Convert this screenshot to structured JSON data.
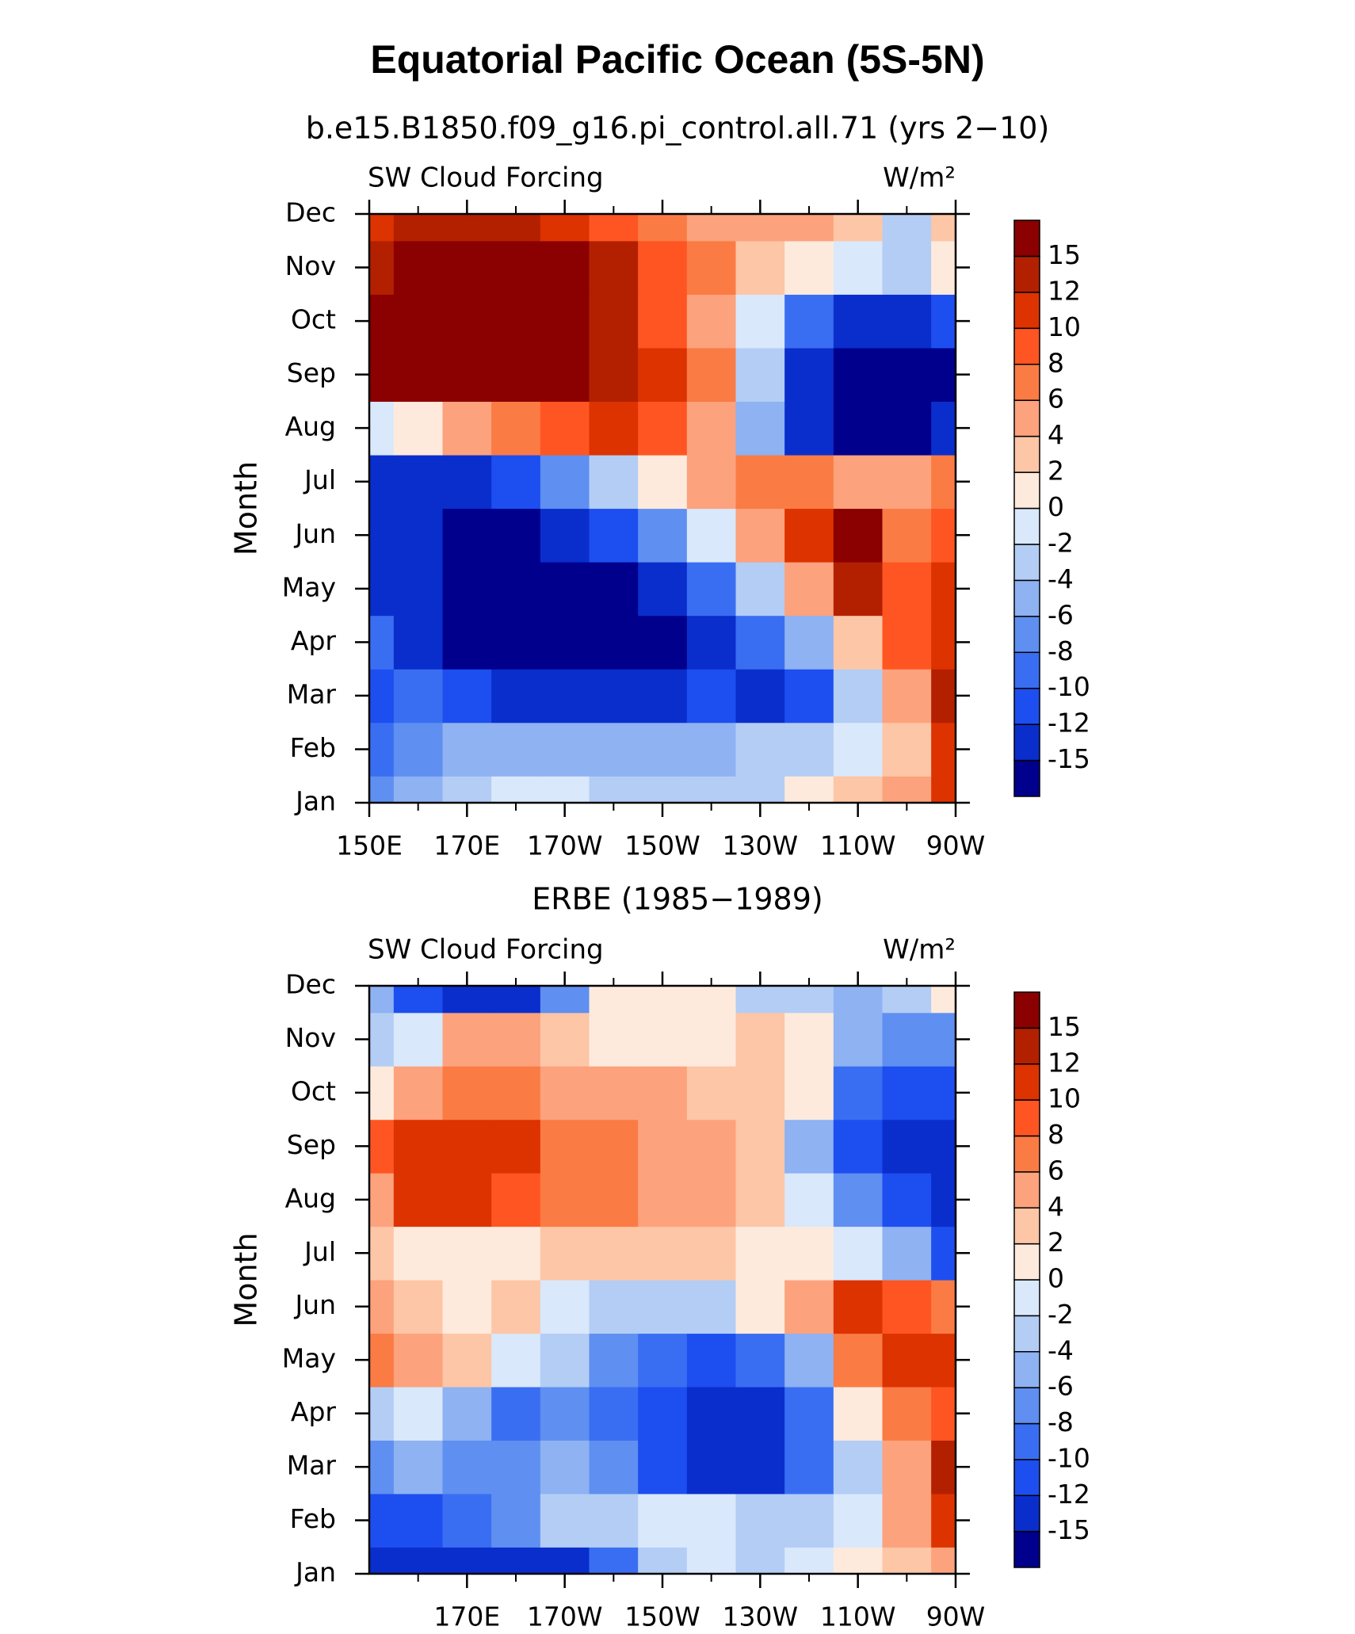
{
  "title": "Equatorial Pacific Ocean (5S-5N)",
  "chart_data": [
    {
      "type": "contour",
      "subtitle": "b.e15.B1850.f09_g16.pi_control.all.71 (yrs 2−10)",
      "left_label": "SW Cloud Forcing",
      "right_label": "W/m²",
      "ylabel": "Month",
      "categories": [
        "Jan",
        "Feb",
        "Mar",
        "Apr",
        "May",
        "Jun",
        "Jul",
        "Aug",
        "Sep",
        "Oct",
        "Nov",
        "Dec"
      ],
      "x": [
        150,
        160,
        170,
        180,
        190,
        200,
        210,
        220,
        230,
        240,
        250,
        260,
        270
      ],
      "xlim": [
        150,
        270
      ],
      "xticks": [
        {
          "value": 150,
          "label": "150E"
        },
        {
          "value": 170,
          "label": "170E"
        },
        {
          "value": 190,
          "label": "170W"
        },
        {
          "value": 210,
          "label": "150W"
        },
        {
          "value": 230,
          "label": "130W"
        },
        {
          "value": 250,
          "label": "110W"
        },
        {
          "value": 270,
          "label": "90W"
        }
      ],
      "xminorticks": [
        160,
        180,
        200,
        220,
        240,
        260
      ],
      "levels": [
        -15,
        -12,
        -10,
        -8,
        -6,
        -4,
        -2,
        0,
        2,
        4,
        6,
        8,
        10,
        12,
        15
      ],
      "colors": [
        "#00008c",
        "#0a2ecc",
        "#1d4ef0",
        "#3a6ef2",
        "#5f8ff0",
        "#8eb2f2",
        "#b3cdf5",
        "#d9e8fb",
        "#feeadc",
        "#fdc6a6",
        "#fca27d",
        "#fb7b45",
        "#ff5522",
        "#dd3300",
        "#b32000",
        "#8b0000"
      ],
      "values": [
        [
          -6,
          -5,
          -3,
          0,
          -1,
          -2,
          -2,
          -3,
          -2,
          2,
          3,
          6,
          12
        ],
        [
          -8,
          -6,
          -5,
          -4,
          -4,
          -4,
          -4,
          -4,
          -3,
          -2,
          0,
          4,
          12
        ],
        [
          -10,
          -9,
          -10,
          -12,
          -14,
          -13,
          -12,
          -10,
          -12,
          -10,
          -2,
          6,
          15
        ],
        [
          -9,
          -12,
          -16,
          -16,
          -16,
          -16,
          -16,
          -14,
          -8,
          -4,
          4,
          10,
          12
        ],
        [
          -12,
          -13,
          -16,
          -16,
          -16,
          -16,
          -13,
          -8,
          -2,
          6,
          15,
          10,
          12
        ],
        [
          -13,
          -14,
          -16,
          -16,
          -14,
          -10,
          -6,
          0,
          6,
          12,
          16,
          8,
          10
        ],
        [
          -12,
          -13,
          -12,
          -10,
          -6,
          -2,
          2,
          6,
          8,
          8,
          6,
          6,
          8
        ],
        [
          0,
          2,
          6,
          8,
          10,
          12,
          10,
          6,
          -4,
          -12,
          -16,
          -16,
          -14
        ],
        [
          16,
          16,
          16,
          16,
          16,
          15,
          12,
          8,
          -2,
          -12,
          -16,
          -16,
          -16
        ],
        [
          16,
          16,
          16,
          16,
          16,
          14,
          10,
          6,
          0,
          -8,
          -12,
          -12,
          -10
        ],
        [
          15,
          16,
          16,
          16,
          16,
          14,
          10,
          8,
          4,
          2,
          0,
          -2,
          2
        ],
        [
          12,
          14,
          15,
          14,
          12,
          10,
          8,
          6,
          6,
          6,
          4,
          -2,
          4
        ]
      ]
    },
    {
      "type": "contour",
      "subtitle": "ERBE (1985−1989)",
      "left_label": "SW Cloud Forcing",
      "right_label": "W/m²",
      "ylabel": "Month",
      "categories": [
        "Jan",
        "Feb",
        "Mar",
        "Apr",
        "May",
        "Jun",
        "Jul",
        "Aug",
        "Sep",
        "Oct",
        "Nov",
        "Dec"
      ],
      "x": [
        150,
        160,
        170,
        180,
        190,
        200,
        210,
        220,
        230,
        240,
        250,
        260,
        270
      ],
      "xlim": [
        150,
        270
      ],
      "xticks": [
        {
          "value": 170,
          "label": "170E"
        },
        {
          "value": 190,
          "label": "170W"
        },
        {
          "value": 210,
          "label": "150W"
        },
        {
          "value": 230,
          "label": "130W"
        },
        {
          "value": 250,
          "label": "110W"
        },
        {
          "value": 270,
          "label": "90W"
        }
      ],
      "xminorticks": [
        160,
        180,
        200,
        220,
        240,
        260
      ],
      "levels": [
        -15,
        -12,
        -10,
        -8,
        -6,
        -4,
        -2,
        0,
        2,
        4,
        6,
        8,
        10,
        12,
        15
      ],
      "colors": [
        "#00008c",
        "#0a2ecc",
        "#1d4ef0",
        "#3a6ef2",
        "#5f8ff0",
        "#8eb2f2",
        "#b3cdf5",
        "#d9e8fb",
        "#feeadc",
        "#fdc6a6",
        "#fca27d",
        "#fb7b45",
        "#ff5522",
        "#dd3300",
        "#b32000",
        "#8b0000"
      ],
      "values": [
        [
          -12,
          -14,
          -14,
          -14,
          -12,
          -8,
          -2,
          0,
          -2,
          0,
          2,
          4,
          6
        ],
        [
          -10,
          -10,
          -8,
          -6,
          -2,
          -2,
          0,
          0,
          -2,
          -2,
          0,
          6,
          12
        ],
        [
          -6,
          -4,
          -6,
          -6,
          -4,
          -6,
          -10,
          -12,
          -12,
          -8,
          -2,
          6,
          14
        ],
        [
          -2,
          0,
          -4,
          -8,
          -6,
          -8,
          -10,
          -14,
          -12,
          -8,
          2,
          8,
          10
        ],
        [
          8,
          6,
          4,
          0,
          -2,
          -6,
          -8,
          -10,
          -8,
          -4,
          8,
          12,
          12
        ],
        [
          6,
          4,
          2,
          4,
          0,
          -2,
          -2,
          -2,
          2,
          6,
          12,
          10,
          8
        ],
        [
          4,
          2,
          2,
          2,
          4,
          4,
          4,
          4,
          2,
          2,
          0,
          -4,
          -10
        ],
        [
          6,
          12,
          12,
          10,
          8,
          8,
          6,
          6,
          4,
          0,
          -6,
          -10,
          -14
        ],
        [
          10,
          12,
          12,
          12,
          8,
          8,
          6,
          6,
          4,
          -4,
          -10,
          -14,
          -14
        ],
        [
          2,
          6,
          8,
          8,
          6,
          6,
          6,
          4,
          4,
          2,
          -8,
          -10,
          -10
        ],
        [
          -2,
          0,
          6,
          6,
          4,
          2,
          2,
          2,
          4,
          2,
          -4,
          -6,
          -6
        ],
        [
          -4,
          -10,
          -14,
          -12,
          -6,
          2,
          2,
          2,
          -2,
          -2,
          -4,
          -2,
          2
        ]
      ]
    }
  ]
}
